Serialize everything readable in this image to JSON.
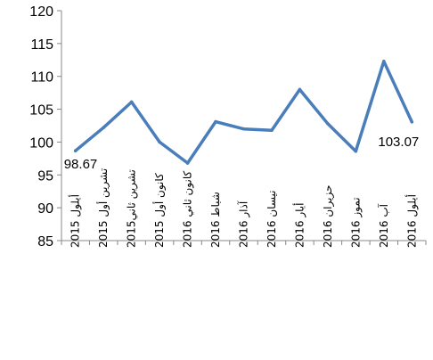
{
  "chart_data": {
    "type": "line",
    "categories": [
      "أيلول 2015",
      "تشرين أول 2015",
      "تشرين ثاني2015",
      "كانون أول 2015",
      "كانون ثاني 2016",
      "شباط 2016",
      "آذار 2016",
      "نيسان 2016",
      "أيار 2016",
      "حزيران 2016",
      "تموز 2016",
      "آب 2016",
      "أيلول 2016"
    ],
    "series": [
      {
        "values": [
          98.67,
          102.2,
          106.1,
          100.0,
          96.8,
          103.1,
          102.0,
          101.8,
          108.0,
          102.8,
          98.6,
          112.3,
          103.07
        ],
        "color": "#4a7ebb"
      }
    ],
    "data_labels": [
      {
        "index": 0,
        "text": "98.67"
      },
      {
        "index": 12,
        "text": "103.07"
      }
    ],
    "yticks": [
      "85",
      "90",
      "95",
      "100",
      "105",
      "110",
      "115",
      "120"
    ],
    "ylim": [
      85,
      120
    ],
    "grid": false,
    "legend": "none",
    "axis_color": "#888888"
  }
}
